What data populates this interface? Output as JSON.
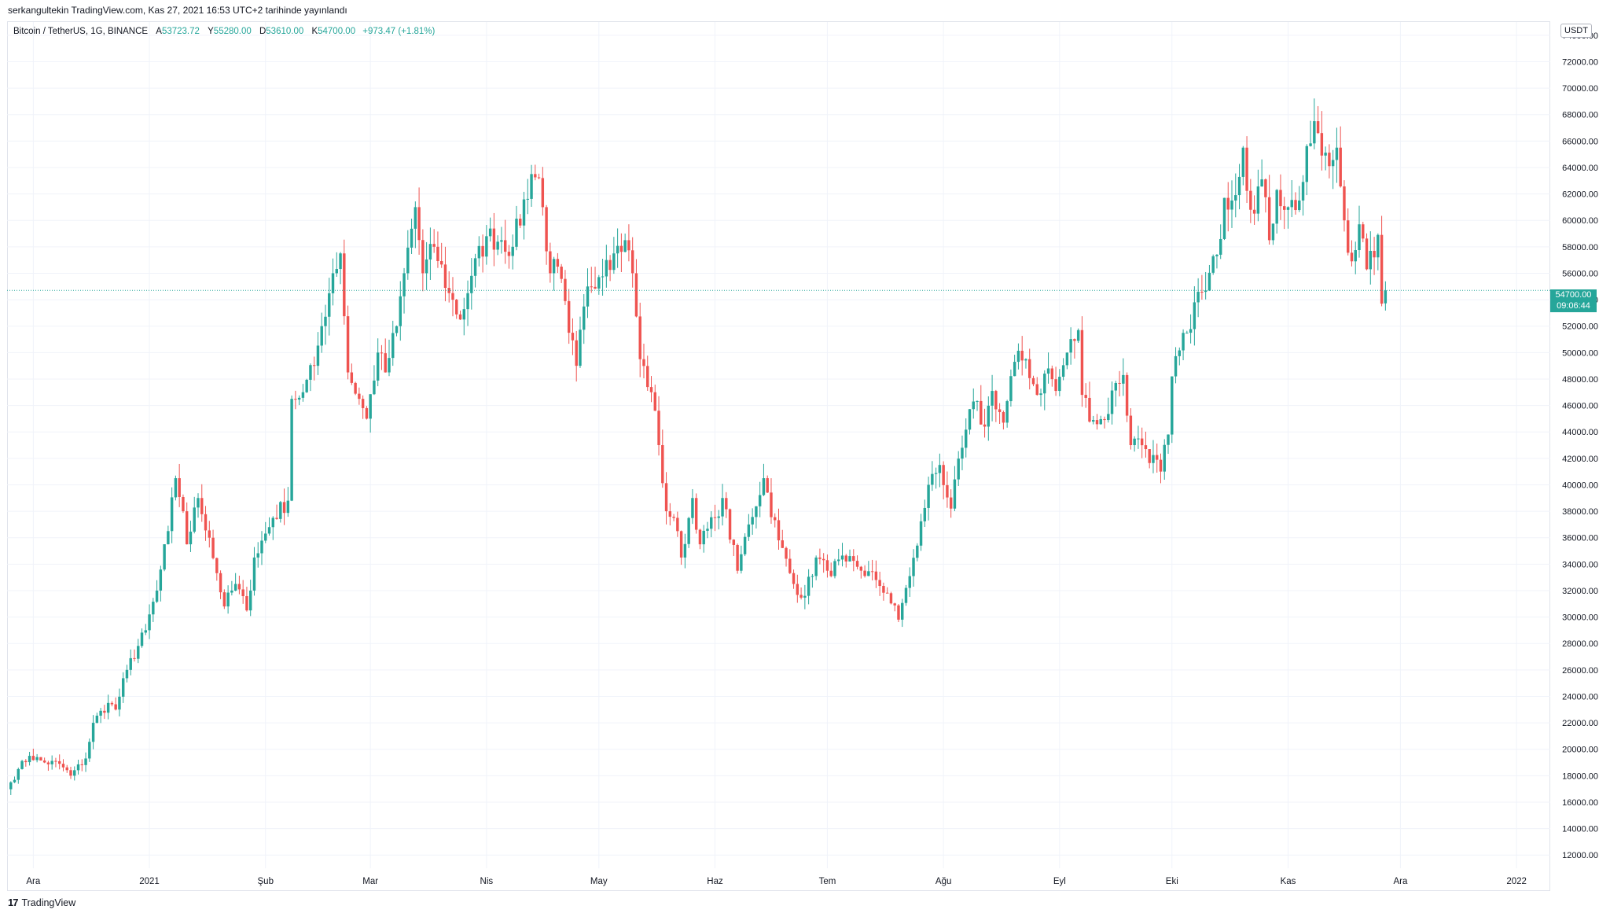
{
  "publish_line": "serkangultekin TradingView.com, Kas 27, 2021 16:53 UTC+2 tarihinde yayınlandı",
  "legend": {
    "symbol": "Bitcoin / TetherUS, 1G, BINANCE",
    "open_label": "A",
    "open_value": "53723.72",
    "high_label": "Y",
    "high_value": "55280.00",
    "low_label": "D",
    "low_value": "53610.00",
    "close_label": "K",
    "close_value": "54700.00",
    "change": "+973.47 (+1.81%)"
  },
  "currency_badge": "USDT",
  "last_price_tag": {
    "price": "54700.00",
    "countdown": "09:06:44"
  },
  "branding": {
    "logo_glyph": "17",
    "name": "TradingView"
  },
  "colors": {
    "up": "#26a69a",
    "down": "#ef5350",
    "grid": "#f0f3fa",
    "axis_text": "#131722",
    "last_price_line": "#26a69a"
  },
  "chart_data": {
    "type": "candlestick",
    "title": "Bitcoin / TetherUS, 1G, BINANCE",
    "ylabel": "USDT",
    "y_range": [
      11000,
      75000
    ],
    "y_ticks": [
      12000,
      14000,
      16000,
      18000,
      20000,
      22000,
      24000,
      26000,
      28000,
      30000,
      32000,
      34000,
      36000,
      38000,
      40000,
      42000,
      44000,
      46000,
      48000,
      50000,
      52000,
      54000,
      56000,
      58000,
      60000,
      62000,
      64000,
      66000,
      68000,
      70000,
      72000,
      74000
    ],
    "x_range": [
      "2020-11-24",
      "2022-01-10"
    ],
    "x_ticks": [
      {
        "label": "Ara",
        "date": "2020-12-01"
      },
      {
        "label": "2021",
        "date": "2021-01-01"
      },
      {
        "label": "Şub",
        "date": "2021-02-01"
      },
      {
        "label": "Mar",
        "date": "2021-03-01"
      },
      {
        "label": "Nis",
        "date": "2021-04-01"
      },
      {
        "label": "May",
        "date": "2021-05-01"
      },
      {
        "label": "Haz",
        "date": "2021-06-01"
      },
      {
        "label": "Tem",
        "date": "2021-07-01"
      },
      {
        "label": "Ağu",
        "date": "2021-08-01"
      },
      {
        "label": "Eyl",
        "date": "2021-09-01"
      },
      {
        "label": "Eki",
        "date": "2021-10-01"
      },
      {
        "label": "Kas",
        "date": "2021-11-01"
      },
      {
        "label": "Ara",
        "date": "2021-12-01"
      },
      {
        "label": "2022",
        "date": "2022-01-01"
      }
    ],
    "last_price": 54700,
    "grid": true,
    "close_anchors": [
      {
        "date": "2020-11-25",
        "close": 17500
      },
      {
        "date": "2020-11-27",
        "close": 18500
      },
      {
        "date": "2020-11-30",
        "close": 19500
      },
      {
        "date": "2020-12-04",
        "close": 19000
      },
      {
        "date": "2020-12-08",
        "close": 18900
      },
      {
        "date": "2020-12-11",
        "close": 18000
      },
      {
        "date": "2020-12-15",
        "close": 19300
      },
      {
        "date": "2020-12-17",
        "close": 22000
      },
      {
        "date": "2020-12-21",
        "close": 23500
      },
      {
        "date": "2020-12-23",
        "close": 23000
      },
      {
        "date": "2020-12-26",
        "close": 26000
      },
      {
        "date": "2020-12-31",
        "close": 29000
      },
      {
        "date": "2021-01-03",
        "close": 32000
      },
      {
        "date": "2021-01-06",
        "close": 36500
      },
      {
        "date": "2021-01-08",
        "close": 40500
      },
      {
        "date": "2021-01-10",
        "close": 38000
      },
      {
        "date": "2021-01-11",
        "close": 35500
      },
      {
        "date": "2021-01-14",
        "close": 39000
      },
      {
        "date": "2021-01-17",
        "close": 36000
      },
      {
        "date": "2021-01-21",
        "close": 30800
      },
      {
        "date": "2021-01-24",
        "close": 32500
      },
      {
        "date": "2021-01-27",
        "close": 30500
      },
      {
        "date": "2021-01-29",
        "close": 34500
      },
      {
        "date": "2021-02-03",
        "close": 37500
      },
      {
        "date": "2021-02-07",
        "close": 38800
      },
      {
        "date": "2021-02-08",
        "close": 46500
      },
      {
        "date": "2021-02-11",
        "close": 47000
      },
      {
        "date": "2021-02-14",
        "close": 49000
      },
      {
        "date": "2021-02-16",
        "close": 52000
      },
      {
        "date": "2021-02-19",
        "close": 56000
      },
      {
        "date": "2021-02-21",
        "close": 57500
      },
      {
        "date": "2021-02-23",
        "close": 48500
      },
      {
        "date": "2021-02-26",
        "close": 46500
      },
      {
        "date": "2021-02-28",
        "close": 45000
      },
      {
        "date": "2021-03-03",
        "close": 50000
      },
      {
        "date": "2021-03-05",
        "close": 48500
      },
      {
        "date": "2021-03-08",
        "close": 52000
      },
      {
        "date": "2021-03-10",
        "close": 56000
      },
      {
        "date": "2021-03-13",
        "close": 61000
      },
      {
        "date": "2021-03-15",
        "close": 56000
      },
      {
        "date": "2021-03-18",
        "close": 58000
      },
      {
        "date": "2021-03-22",
        "close": 54500
      },
      {
        "date": "2021-03-25",
        "close": 52500
      },
      {
        "date": "2021-03-28",
        "close": 55800
      },
      {
        "date": "2021-04-01",
        "close": 58800
      },
      {
        "date": "2021-04-05",
        "close": 58500
      },
      {
        "date": "2021-04-08",
        "close": 58000
      },
      {
        "date": "2021-04-13",
        "close": 63500
      },
      {
        "date": "2021-04-15",
        "close": 63200
      },
      {
        "date": "2021-04-18",
        "close": 56000
      },
      {
        "date": "2021-04-20",
        "close": 56500
      },
      {
        "date": "2021-04-23",
        "close": 51500
      },
      {
        "date": "2021-04-25",
        "close": 49000
      },
      {
        "date": "2021-04-28",
        "close": 55000
      },
      {
        "date": "2021-05-03",
        "close": 57000
      },
      {
        "date": "2021-05-05",
        "close": 57500
      },
      {
        "date": "2021-05-08",
        "close": 58500
      },
      {
        "date": "2021-05-10",
        "close": 56000
      },
      {
        "date": "2021-05-12",
        "close": 49500
      },
      {
        "date": "2021-05-15",
        "close": 47000
      },
      {
        "date": "2021-05-17",
        "close": 43000
      },
      {
        "date": "2021-05-19",
        "close": 38000
      },
      {
        "date": "2021-05-21",
        "close": 37500
      },
      {
        "date": "2021-05-23",
        "close": 34500
      },
      {
        "date": "2021-05-26",
        "close": 39000
      },
      {
        "date": "2021-05-28",
        "close": 35500
      },
      {
        "date": "2021-06-01",
        "close": 37500
      },
      {
        "date": "2021-06-03",
        "close": 39000
      },
      {
        "date": "2021-06-07",
        "close": 33500
      },
      {
        "date": "2021-06-10",
        "close": 37000
      },
      {
        "date": "2021-06-14",
        "close": 40500
      },
      {
        "date": "2021-06-18",
        "close": 35800
      },
      {
        "date": "2021-06-22",
        "close": 32500
      },
      {
        "date": "2021-06-25",
        "close": 31600
      },
      {
        "date": "2021-06-28",
        "close": 34500
      },
      {
        "date": "2021-07-01",
        "close": 33500
      },
      {
        "date": "2021-07-06",
        "close": 34200
      },
      {
        "date": "2021-07-09",
        "close": 33800
      },
      {
        "date": "2021-07-14",
        "close": 32800
      },
      {
        "date": "2021-07-17",
        "close": 31800
      },
      {
        "date": "2021-07-20",
        "close": 29800
      },
      {
        "date": "2021-07-22",
        "close": 32200
      },
      {
        "date": "2021-07-25",
        "close": 35400
      },
      {
        "date": "2021-07-28",
        "close": 40000
      },
      {
        "date": "2021-07-31",
        "close": 41500
      },
      {
        "date": "2021-08-03",
        "close": 38200
      },
      {
        "date": "2021-08-06",
        "close": 42800
      },
      {
        "date": "2021-08-09",
        "close": 46300
      },
      {
        "date": "2021-08-12",
        "close": 44400
      },
      {
        "date": "2021-08-14",
        "close": 47100
      },
      {
        "date": "2021-08-17",
        "close": 44700
      },
      {
        "date": "2021-08-20",
        "close": 49300
      },
      {
        "date": "2021-08-23",
        "close": 49500
      },
      {
        "date": "2021-08-26",
        "close": 46800
      },
      {
        "date": "2021-08-29",
        "close": 48800
      },
      {
        "date": "2021-08-31",
        "close": 47100
      },
      {
        "date": "2021-09-03",
        "close": 50000
      },
      {
        "date": "2021-09-06",
        "close": 51700
      },
      {
        "date": "2021-09-07",
        "close": 46800
      },
      {
        "date": "2021-09-10",
        "close": 44900
      },
      {
        "date": "2021-09-13",
        "close": 44900
      },
      {
        "date": "2021-09-16",
        "close": 47700
      },
      {
        "date": "2021-09-18",
        "close": 48300
      },
      {
        "date": "2021-09-20",
        "close": 43000
      },
      {
        "date": "2021-09-22",
        "close": 43500
      },
      {
        "date": "2021-09-24",
        "close": 42700
      },
      {
        "date": "2021-09-28",
        "close": 41000
      },
      {
        "date": "2021-09-30",
        "close": 43800
      },
      {
        "date": "2021-10-01",
        "close": 48200
      },
      {
        "date": "2021-10-05",
        "close": 51500
      },
      {
        "date": "2021-10-07",
        "close": 53800
      },
      {
        "date": "2021-10-10",
        "close": 54700
      },
      {
        "date": "2021-10-13",
        "close": 57400
      },
      {
        "date": "2021-10-15",
        "close": 61700
      },
      {
        "date": "2021-10-17",
        "close": 61500
      },
      {
        "date": "2021-10-20",
        "close": 65500
      },
      {
        "date": "2021-10-22",
        "close": 60800
      },
      {
        "date": "2021-10-25",
        "close": 63100
      },
      {
        "date": "2021-10-27",
        "close": 58500
      },
      {
        "date": "2021-10-29",
        "close": 62300
      },
      {
        "date": "2021-11-01",
        "close": 61000
      },
      {
        "date": "2021-11-04",
        "close": 61500
      },
      {
        "date": "2021-11-08",
        "close": 67500
      },
      {
        "date": "2021-11-10",
        "close": 64900
      },
      {
        "date": "2021-11-12",
        "close": 64100
      },
      {
        "date": "2021-11-14",
        "close": 65500
      },
      {
        "date": "2021-11-16",
        "close": 60000
      },
      {
        "date": "2021-11-18",
        "close": 56900
      },
      {
        "date": "2021-11-20",
        "close": 59700
      },
      {
        "date": "2021-11-22",
        "close": 56300
      },
      {
        "date": "2021-11-24",
        "close": 57200
      },
      {
        "date": "2021-11-25",
        "close": 58900
      },
      {
        "date": "2021-11-26",
        "close": 53700
      },
      {
        "date": "2021-11-27",
        "close": 54700
      }
    ]
  }
}
